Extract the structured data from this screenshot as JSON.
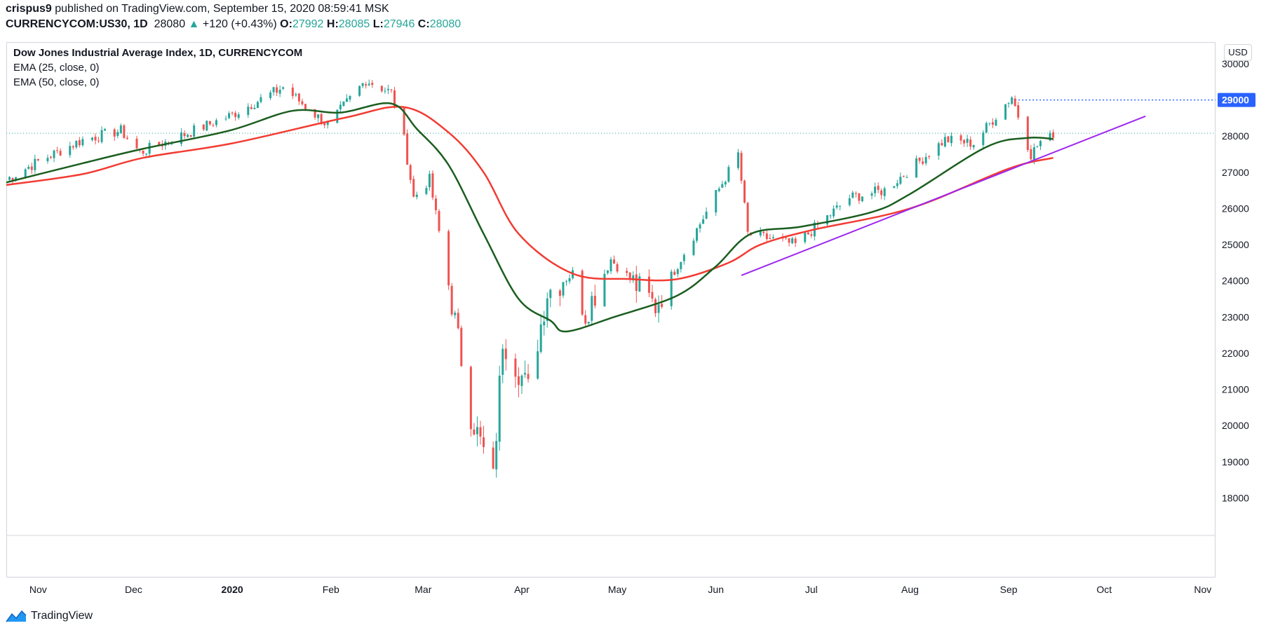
{
  "header": {
    "user": "crispus9",
    "published": " published on TradingView.com, September 15, 2020 08:59:41 MSK",
    "symbol": "CURRENCYCOM:US30, 1D",
    "last": "28080",
    "arrow": "▲",
    "change": "+120 (+0.43%)",
    "o_label": "O:",
    "o": "27992",
    "h_label": "H:",
    "h": "28085",
    "l_label": "L:",
    "l": "27946",
    "c_label": "C:",
    "c": "28080"
  },
  "legend": {
    "title": "Dow Jones Industrial Average Index, 1D, CURRENCYCOM",
    "ema25": "EMA (25, close, 0)",
    "ema50": "EMA (50, close, 0)"
  },
  "currency_button": "USD",
  "footer": {
    "brand": "TradingView",
    "logo_icon": "tradingview-logo-icon"
  },
  "colors": {
    "up": "#26a69a",
    "down": "#ef5350",
    "ema25": "#1b5e20",
    "ema50": "#f23c33",
    "trendline": "#9c27f0",
    "price_label": "#2962ff",
    "grid": "#e0e3eb"
  },
  "chart_data": {
    "type": "candlestick",
    "title": "Dow Jones Industrial Average Index, 1D, CURRENCYCOM",
    "ylim": [
      17000,
      30600
    ],
    "y_ticks": [
      18000,
      19000,
      20000,
      21000,
      22000,
      23000,
      24000,
      25000,
      26000,
      27000,
      28000,
      29000,
      30000
    ],
    "y_highlight": 29000,
    "last_close": 28080,
    "x_ticks": [
      "Nov",
      "Dec",
      "2020",
      "Feb",
      "Mar",
      "Apr",
      "May",
      "Jun",
      "Jul",
      "Aug",
      "Sep",
      "Oct",
      "Nov"
    ],
    "x_range": [
      "2019-10-22",
      "2020-11-05"
    ],
    "x_tick_dates": [
      "2019-11-01",
      "2019-12-01",
      "2020-01-01",
      "2020-02-01",
      "2020-03-01",
      "2020-04-01",
      "2020-05-01",
      "2020-06-01",
      "2020-07-01",
      "2020-08-01",
      "2020-09-01",
      "2020-10-01",
      "2020-11-01"
    ],
    "anchors": [
      [
        "2019-10-22",
        26800
      ],
      [
        "2019-11-01",
        27300
      ],
      [
        "2019-11-15",
        27900
      ],
      [
        "2019-11-27",
        28150
      ],
      [
        "2019-12-03",
        27550
      ],
      [
        "2019-12-31",
        28550
      ],
      [
        "2020-01-17",
        29350
      ],
      [
        "2020-01-31",
        28300
      ],
      [
        "2020-02-12",
        29550
      ],
      [
        "2020-02-20",
        29200
      ],
      [
        "2020-02-24",
        27900
      ],
      [
        "2020-02-27",
        26300
      ],
      [
        "2020-03-03",
        26800
      ],
      [
        "2020-03-09",
        23900
      ],
      [
        "2020-03-16",
        20300
      ],
      [
        "2020-03-23",
        18500
      ],
      [
        "2020-03-26",
        22400
      ],
      [
        "2020-04-03",
        21000
      ],
      [
        "2020-04-09",
        23700
      ],
      [
        "2020-04-17",
        24200
      ],
      [
        "2020-04-21",
        23100
      ],
      [
        "2020-04-29",
        24600
      ],
      [
        "2020-05-13",
        23300
      ],
      [
        "2020-05-19",
        24300
      ],
      [
        "2020-06-08",
        27500
      ],
      [
        "2020-06-11",
        25300
      ],
      [
        "2020-06-26",
        25000
      ],
      [
        "2020-07-13",
        26300
      ],
      [
        "2020-07-24",
        26500
      ],
      [
        "2020-08-12",
        27900
      ],
      [
        "2020-08-21",
        27800
      ],
      [
        "2020-09-02",
        29100
      ],
      [
        "2020-09-08",
        27500
      ],
      [
        "2020-09-11",
        27850
      ],
      [
        "2020-09-14",
        27960
      ],
      [
        "2020-09-15",
        28080
      ]
    ],
    "ema25": [
      [
        "2019-10-22",
        26720
      ],
      [
        "2019-11-15",
        27250
      ],
      [
        "2019-12-04",
        27650
      ],
      [
        "2019-12-31",
        28150
      ],
      [
        "2020-01-20",
        28700
      ],
      [
        "2020-02-04",
        28650
      ],
      [
        "2020-02-20",
        28900
      ],
      [
        "2020-02-28",
        28200
      ],
      [
        "2020-03-09",
        27200
      ],
      [
        "2020-03-20",
        25300
      ],
      [
        "2020-03-31",
        23500
      ],
      [
        "2020-04-10",
        22900
      ],
      [
        "2020-04-15",
        22600
      ],
      [
        "2020-04-30",
        23000
      ],
      [
        "2020-05-20",
        23600
      ],
      [
        "2020-06-01",
        24400
      ],
      [
        "2020-06-12",
        25300
      ],
      [
        "2020-06-28",
        25500
      ],
      [
        "2020-07-20",
        25900
      ],
      [
        "2020-08-01",
        26400
      ],
      [
        "2020-08-25",
        27700
      ],
      [
        "2020-09-07",
        27950
      ],
      [
        "2020-09-15",
        27920
      ]
    ],
    "ema50": [
      [
        "2019-10-22",
        26650
      ],
      [
        "2019-11-15",
        26950
      ],
      [
        "2019-12-04",
        27400
      ],
      [
        "2020-01-01",
        27800
      ],
      [
        "2020-02-05",
        28500
      ],
      [
        "2020-02-24",
        28800
      ],
      [
        "2020-03-09",
        28100
      ],
      [
        "2020-03-20",
        27000
      ],
      [
        "2020-03-31",
        25300
      ],
      [
        "2020-04-17",
        24200
      ],
      [
        "2020-05-05",
        24050
      ],
      [
        "2020-05-20",
        24050
      ],
      [
        "2020-06-05",
        24500
      ],
      [
        "2020-06-15",
        25000
      ],
      [
        "2020-07-01",
        25400
      ],
      [
        "2020-08-01",
        26000
      ],
      [
        "2020-09-01",
        27100
      ],
      [
        "2020-09-15",
        27400
      ]
    ],
    "trendline": [
      [
        "2020-06-09",
        24150
      ],
      [
        "2020-10-14",
        28550
      ]
    ],
    "series": [
      {
        "name": "EMA (25, close, 0)"
      },
      {
        "name": "EMA (50, close, 0)"
      }
    ]
  }
}
